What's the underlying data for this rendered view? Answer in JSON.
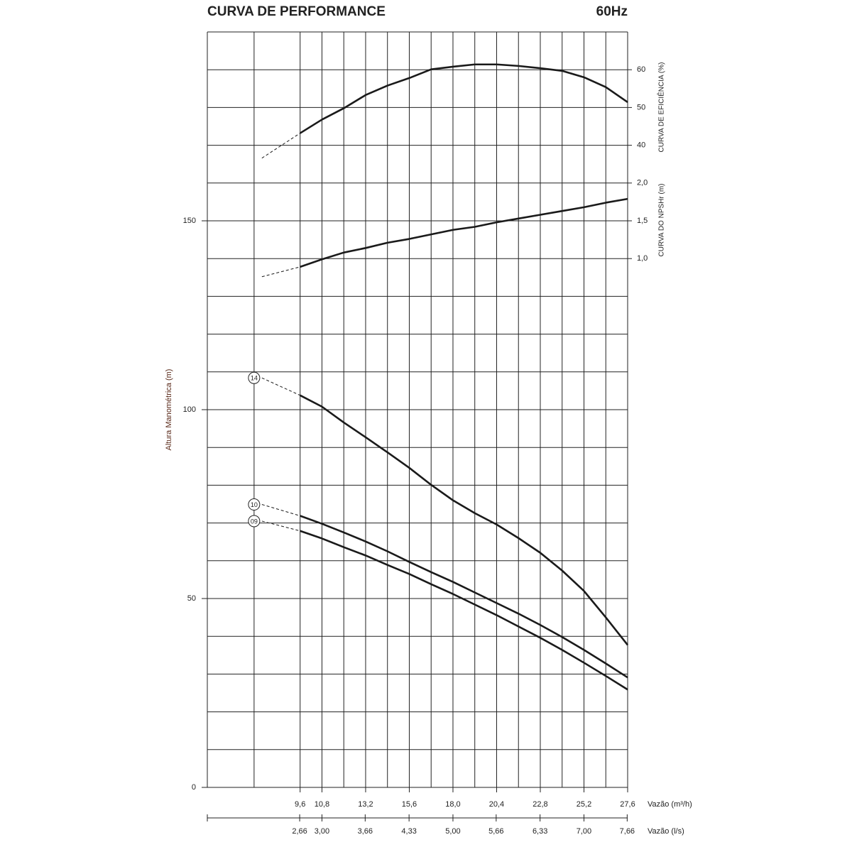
{
  "chart_data": {
    "type": "line",
    "title": "CURVA DE PERFORMANCE",
    "subtitle": "60Hz",
    "ylabel": "Altura Manométrica (m)",
    "y2label": "CURVA DE EFICIÊNCIA (%)",
    "y3label": "CURVA DO NPSHr (m)",
    "xlabel": "Vazão (m³/h)",
    "x2label": "Vazão (l/s)",
    "x": [
      7.5,
      9.6,
      10.8,
      12.0,
      13.2,
      14.4,
      15.6,
      16.8,
      18.0,
      19.2,
      20.4,
      21.6,
      22.8,
      24.0,
      25.2,
      26.4,
      27.6
    ],
    "xlim": [
      4.5,
      27.6
    ],
    "xticks": [
      {
        "value": 9.6,
        "label": "9,6"
      },
      {
        "value": 10.8,
        "label": "10,8"
      },
      {
        "value": 13.2,
        "label": "13,2"
      },
      {
        "value": 15.6,
        "label": "15,6"
      },
      {
        "value": 18.0,
        "label": "18,0"
      },
      {
        "value": 20.4,
        "label": "20,4"
      },
      {
        "value": 22.8,
        "label": "22,8"
      },
      {
        "value": 25.2,
        "label": "25,2"
      },
      {
        "value": 27.6,
        "label": "27,6"
      }
    ],
    "xgrid": [
      7.07,
      9.6,
      10.8,
      12.0,
      13.2,
      14.4,
      15.6,
      16.8,
      18.0,
      19.2,
      20.4,
      21.6,
      22.8,
      24.0,
      25.2,
      26.4,
      27.6
    ],
    "x2lim": [
      1.25,
      7.667
    ],
    "x2ticks": [
      {
        "value": 2.66,
        "label": "2,66"
      },
      {
        "value": 3.0,
        "label": "3,00"
      },
      {
        "value": 3.66,
        "label": "3,66"
      },
      {
        "value": 4.33,
        "label": "4,33"
      },
      {
        "value": 5.0,
        "label": "5,00"
      },
      {
        "value": 5.66,
        "label": "5,66"
      },
      {
        "value": 6.33,
        "label": "6,33"
      },
      {
        "value": 7.0,
        "label": "7,00"
      },
      {
        "value": 7.66,
        "label": "7,66"
      }
    ],
    "ylim": [
      0,
      200
    ],
    "yticks": [
      0,
      50,
      100,
      150
    ],
    "ygrid": [
      10,
      20,
      30,
      40,
      50,
      60,
      70,
      80,
      90,
      100,
      110,
      120,
      130,
      140,
      150,
      160,
      170,
      180,
      190,
      200
    ],
    "y2lim": [
      -130,
      70
    ],
    "y2ticks": [
      40,
      50,
      60
    ],
    "y3lim": [
      -6,
      4
    ],
    "y3ticks": [
      {
        "value": 1.0,
        "label": "1,0"
      },
      {
        "value": 1.5,
        "label": "1,5"
      },
      {
        "value": 2.0,
        "label": "2,0"
      }
    ],
    "grid": true,
    "line_start": "dashed",
    "color": "#1a1a1a",
    "series": [
      {
        "name": "14",
        "values": [
          108.4,
          103.8,
          100.8,
          96.6,
          92.7,
          88.7,
          84.6,
          80.1,
          76.0,
          72.6,
          69.6,
          66.0,
          62.1,
          57.4,
          52.0,
          45.0,
          37.7
        ]
      },
      {
        "name": "10",
        "values": [
          74.9,
          71.9,
          69.8,
          67.5,
          65.1,
          62.5,
          59.7,
          57.0,
          54.4,
          51.6,
          48.8,
          46.0,
          43.0,
          39.8,
          36.4,
          32.8,
          29.1
        ]
      },
      {
        "name": "09",
        "values": [
          70.5,
          67.9,
          65.9,
          63.6,
          61.4,
          58.9,
          56.5,
          53.8,
          51.2,
          48.4,
          45.6,
          42.6,
          39.6,
          36.4,
          33.0,
          29.5,
          25.9
        ]
      },
      {
        "axis": "y2",
        "values": [
          36.6,
          43.2,
          46.8,
          49.8,
          53.3,
          55.8,
          57.8,
          60.1,
          60.8,
          61.4,
          61.4,
          61.0,
          60.4,
          59.7,
          58.0,
          55.4,
          51.4
        ]
      },
      {
        "axis": "y3",
        "values": [
          0.76,
          0.89,
          0.99,
          1.08,
          1.14,
          1.21,
          1.26,
          1.32,
          1.38,
          1.42,
          1.48,
          1.53,
          1.58,
          1.63,
          1.68,
          1.74,
          1.79
        ]
      }
    ]
  }
}
